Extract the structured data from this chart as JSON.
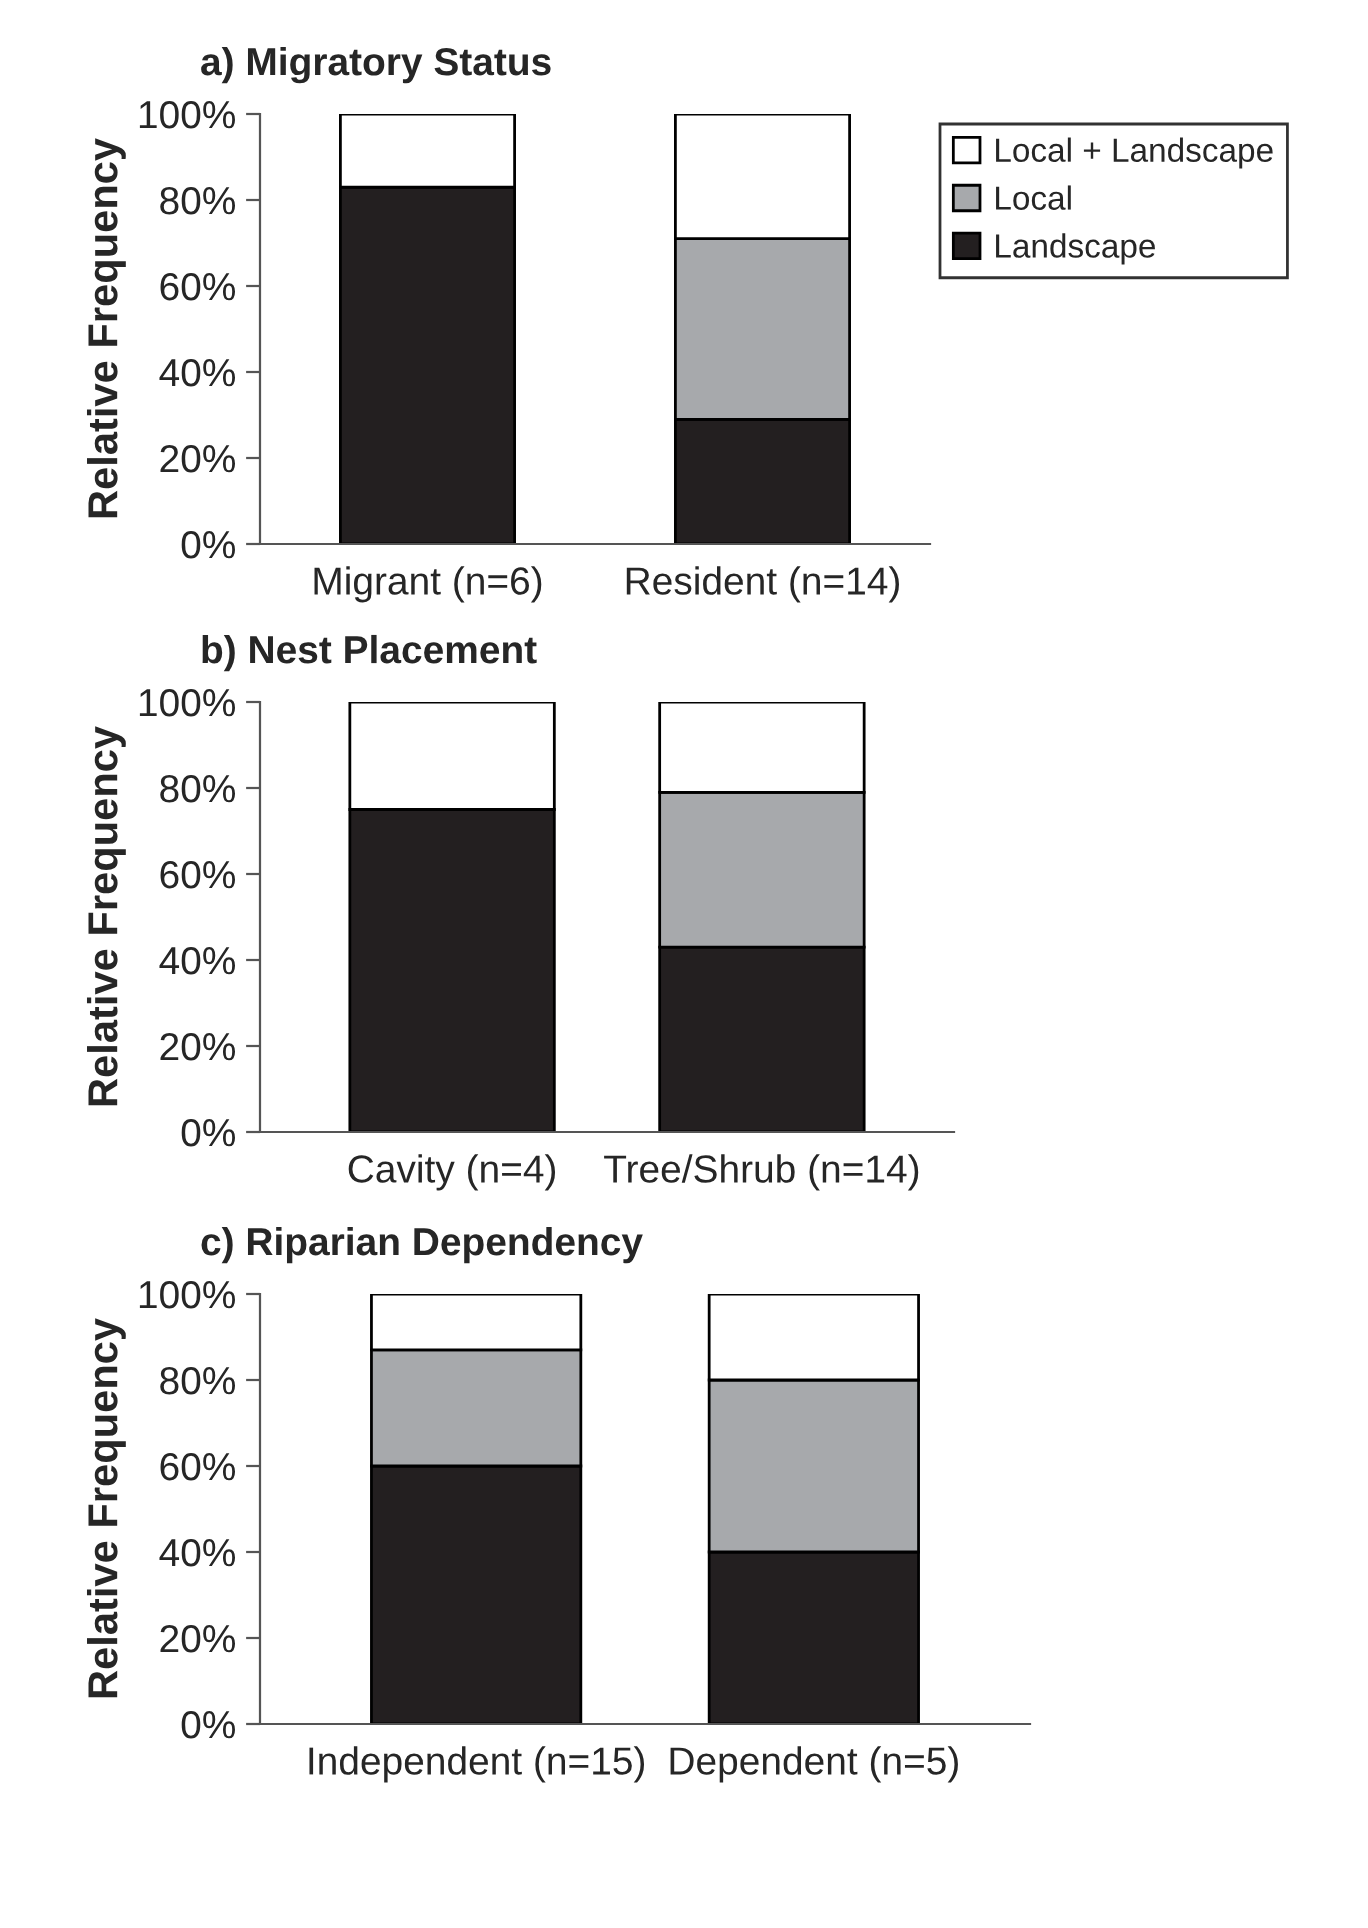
{
  "chart_data": [
    {
      "type": "bar",
      "title": "a) Migratory Status",
      "ylabel": "Relative Frequency",
      "categories": [
        "Migrant (n=6)",
        "Resident (n=14)"
      ],
      "stacked": true,
      "legend": "right",
      "ylim": [
        0,
        100
      ],
      "yticks": [
        {
          "value": 0,
          "label": "0%"
        },
        {
          "value": 20,
          "label": "20%"
        },
        {
          "value": 40,
          "label": "40%"
        },
        {
          "value": 60,
          "label": "60%"
        },
        {
          "value": 80,
          "label": "80%"
        },
        {
          "value": 100,
          "label": "100%"
        }
      ],
      "series": [
        {
          "name": "Landscape",
          "color": "#231f20",
          "values": [
            83,
            29
          ]
        },
        {
          "name": "Local",
          "color": "#a7a9ac",
          "values": [
            0,
            42
          ]
        },
        {
          "name": "Local + Landscape",
          "color": "#ffffff",
          "values": [
            17,
            29
          ]
        }
      ]
    },
    {
      "type": "bar",
      "title": "b) Nest Placement",
      "ylabel": "Relative Frequency",
      "categories": [
        "Cavity (n=4)",
        "Tree/Shrub (n=14)"
      ],
      "stacked": true,
      "ylim": [
        0,
        100
      ],
      "yticks": [
        {
          "value": 0,
          "label": "0%"
        },
        {
          "value": 20,
          "label": "20%"
        },
        {
          "value": 40,
          "label": "40%"
        },
        {
          "value": 60,
          "label": "60%"
        },
        {
          "value": 80,
          "label": "80%"
        },
        {
          "value": 100,
          "label": "100%"
        }
      ],
      "series": [
        {
          "color": "#231f20",
          "values": [
            75,
            43
          ]
        },
        {
          "color": "#a7a9ac",
          "values": [
            0,
            36
          ]
        },
        {
          "color": "#ffffff",
          "values": [
            25,
            21
          ]
        }
      ]
    },
    {
      "type": "bar",
      "title": "c) Riparian Dependency",
      "ylabel": "Relative Frequency",
      "categories": [
        "Independent (n=15)",
        "Dependent (n=5)"
      ],
      "stacked": true,
      "ylim": [
        0,
        100
      ],
      "yticks": [
        {
          "value": 0,
          "label": "0%"
        },
        {
          "value": 20,
          "label": "20%"
        },
        {
          "value": 40,
          "label": "40%"
        },
        {
          "value": 60,
          "label": "60%"
        },
        {
          "value": 80,
          "label": "80%"
        },
        {
          "value": 100,
          "label": "100%"
        }
      ],
      "series": [
        {
          "color": "#231f20",
          "values": [
            60,
            40
          ]
        },
        {
          "color": "#a7a9ac",
          "values": [
            27,
            40
          ]
        },
        {
          "color": "#ffffff",
          "values": [
            13,
            20
          ]
        }
      ]
    }
  ]
}
